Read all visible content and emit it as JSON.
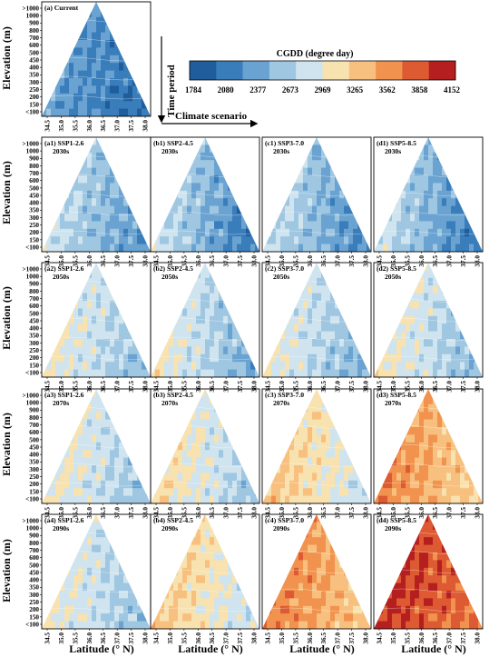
{
  "chart_data": {
    "type": "heatmap",
    "title": "CGDD  (degree day)",
    "colorbar": {
      "ticks": [
        "1784",
        "2080",
        "2377",
        "2673",
        "2969",
        "3265",
        "3562",
        "3858",
        "4152"
      ],
      "colors": [
        "#1f5d9c",
        "#3a7dbb",
        "#6aa3d1",
        "#9fc7e2",
        "#cfe4ee",
        "#f7e2b0",
        "#f8c07e",
        "#f1934f",
        "#dd5a32",
        "#b51f1f"
      ]
    },
    "annotations": {
      "time_axis": "Time period",
      "scenario_axis": "Climate scenario"
    },
    "xlabel": "Latitude (° N)",
    "ylabel": "Elevation (m)",
    "x_ticks": [
      "34.5",
      "35.0",
      "35.5",
      "36.0",
      "36.5",
      "37.0",
      "37.5",
      "38.0"
    ],
    "y_ticks": [
      "<100",
      "150",
      "200",
      "250",
      "300",
      "350",
      "400",
      "450",
      "500",
      "600",
      "700",
      "800",
      "900",
      "1000",
      ">1000"
    ],
    "panels": [
      {
        "label": "(a) Current",
        "period": "",
        "level": 0.2,
        "gradient": 0.1
      },
      {
        "label": "(a1) SSP1-2.6",
        "period": "2030s",
        "level": 0.34,
        "gradient": 0.16
      },
      {
        "label": "(b1) SSP2-4.5",
        "period": "2030s",
        "level": 0.3,
        "gradient": 0.22
      },
      {
        "label": "(c1) SSP3-7.0",
        "period": "2030s",
        "level": 0.32,
        "gradient": 0.18
      },
      {
        "label": "(d1) SSP5-8.5",
        "period": "2030s",
        "level": 0.3,
        "gradient": 0.22
      },
      {
        "label": "(a2) SSP1-2.6",
        "period": "2050s",
        "level": 0.44,
        "gradient": 0.14
      },
      {
        "label": "(b2) SSP2-4.5",
        "period": "2050s",
        "level": 0.41,
        "gradient": 0.18
      },
      {
        "label": "(c2) SSP3-7.0",
        "period": "2050s",
        "level": 0.42,
        "gradient": 0.16
      },
      {
        "label": "(d2) SSP5-8.5",
        "period": "2050s",
        "level": 0.44,
        "gradient": 0.16
      },
      {
        "label": "(a3) SSP1-2.6",
        "period": "2070s",
        "level": 0.45,
        "gradient": 0.14
      },
      {
        "label": "(b3) SSP2-4.5",
        "period": "2070s",
        "level": 0.48,
        "gradient": 0.16
      },
      {
        "label": "(c3) SSP3-7.0",
        "period": "2070s",
        "level": 0.55,
        "gradient": 0.14
      },
      {
        "label": "(d3) SSP5-8.5",
        "period": "2070s",
        "level": 0.7,
        "gradient": 0.14
      },
      {
        "label": "(a4) SSP1-2.6",
        "period": "2090s",
        "level": 0.44,
        "gradient": 0.14
      },
      {
        "label": "(b4) SSP2-4.5",
        "period": "2090s",
        "level": 0.55,
        "gradient": 0.14
      },
      {
        "label": "(c4) SSP3-7.0",
        "period": "2090s",
        "level": 0.72,
        "gradient": 0.12
      },
      {
        "label": "(d4) SSP5-8.5",
        "period": "2090s",
        "level": 0.88,
        "gradient": 0.1
      }
    ]
  }
}
